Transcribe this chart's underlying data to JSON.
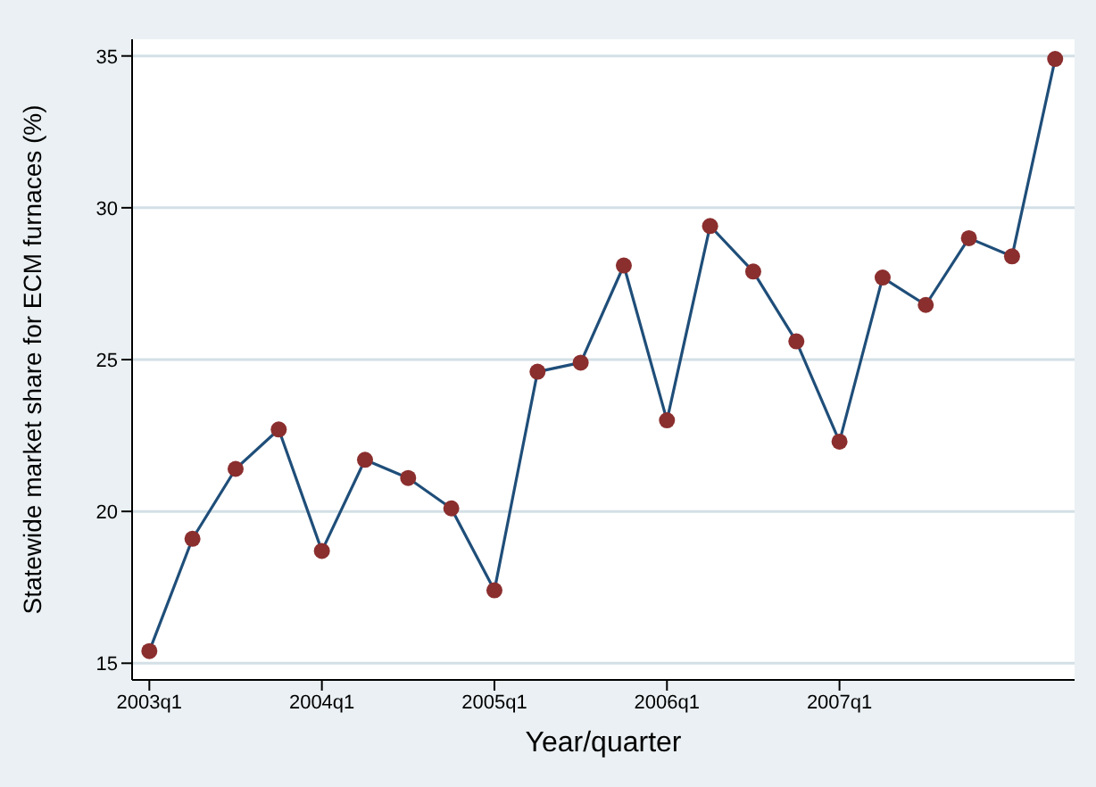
{
  "chart_data": {
    "type": "line",
    "xlabel": "Year/quarter",
    "ylabel": "Statewide market share for ECM furnaces (%)",
    "categories": [
      "2003q1",
      null,
      null,
      null,
      "2004q1",
      null,
      null,
      null,
      "2005q1",
      null,
      null,
      null,
      "2006q1",
      null,
      null,
      null,
      "2007q1",
      null,
      null,
      null,
      null,
      null
    ],
    "series": [
      {
        "color": "#1f4e79",
        "values": [
          15.4,
          19.1,
          21.4,
          22.7,
          18.7,
          21.7,
          21.1,
          20.1,
          17.4,
          24.6,
          24.9,
          28.1,
          23.0,
          29.4,
          27.9,
          25.6,
          22.3,
          27.7,
          26.8,
          29.0,
          28.4,
          34.9
        ],
        "colors": [
          "#8b2e2e",
          "#8b2e2e",
          "#8b2e2e",
          "#8b2e2e",
          "#8b2e2e",
          "#8b2e2e",
          "#8b2e2e",
          "#8b2e2e",
          "#8b2e2e",
          "#8b2e2e",
          "#8b2e2e",
          "#8b2e2e",
          "#8b2e2e",
          "#8b2e2e",
          "#8b2e2e",
          "#8b2e2e",
          "#8b2e2e",
          "#8b2e2e",
          "#8b2e2e",
          "#8b2e2e",
          "#8b2e2e",
          "#8b2e2e"
        ]
      }
    ],
    "marker": "circle",
    "line_style": "solid",
    "ylim": [
      14.45,
      35.55
    ],
    "yticks": [
      15,
      20,
      25,
      30,
      35
    ],
    "grid": "y"
  }
}
